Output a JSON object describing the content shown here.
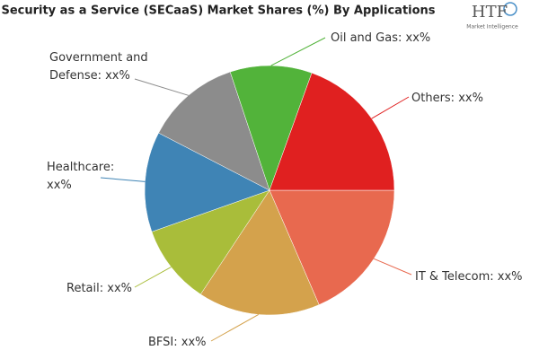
{
  "chart_data": {
    "type": "pie",
    "title": "Security as a Service (SECaaS) Market Shares (%) By Applications",
    "categories": [
      "IT & Telecom: xx%",
      "BFSI: xx%",
      "Retail: xx%",
      "Healthcare:\nxx%",
      "Government and\nDefense: xx%",
      "Oil and Gas: xx%",
      "Others: xx%"
    ],
    "values": [
      18.5,
      15.8,
      10.3,
      13,
      12.3,
      10.6,
      19.5
    ],
    "colors": [
      "#e8694f",
      "#d4a24c",
      "#a9bd3a",
      "#3f84b5",
      "#8c8c8c",
      "#52b33a",
      "#e02020"
    ]
  },
  "logo": {
    "name": "HTF",
    "tagline": "Market Intelligence"
  }
}
